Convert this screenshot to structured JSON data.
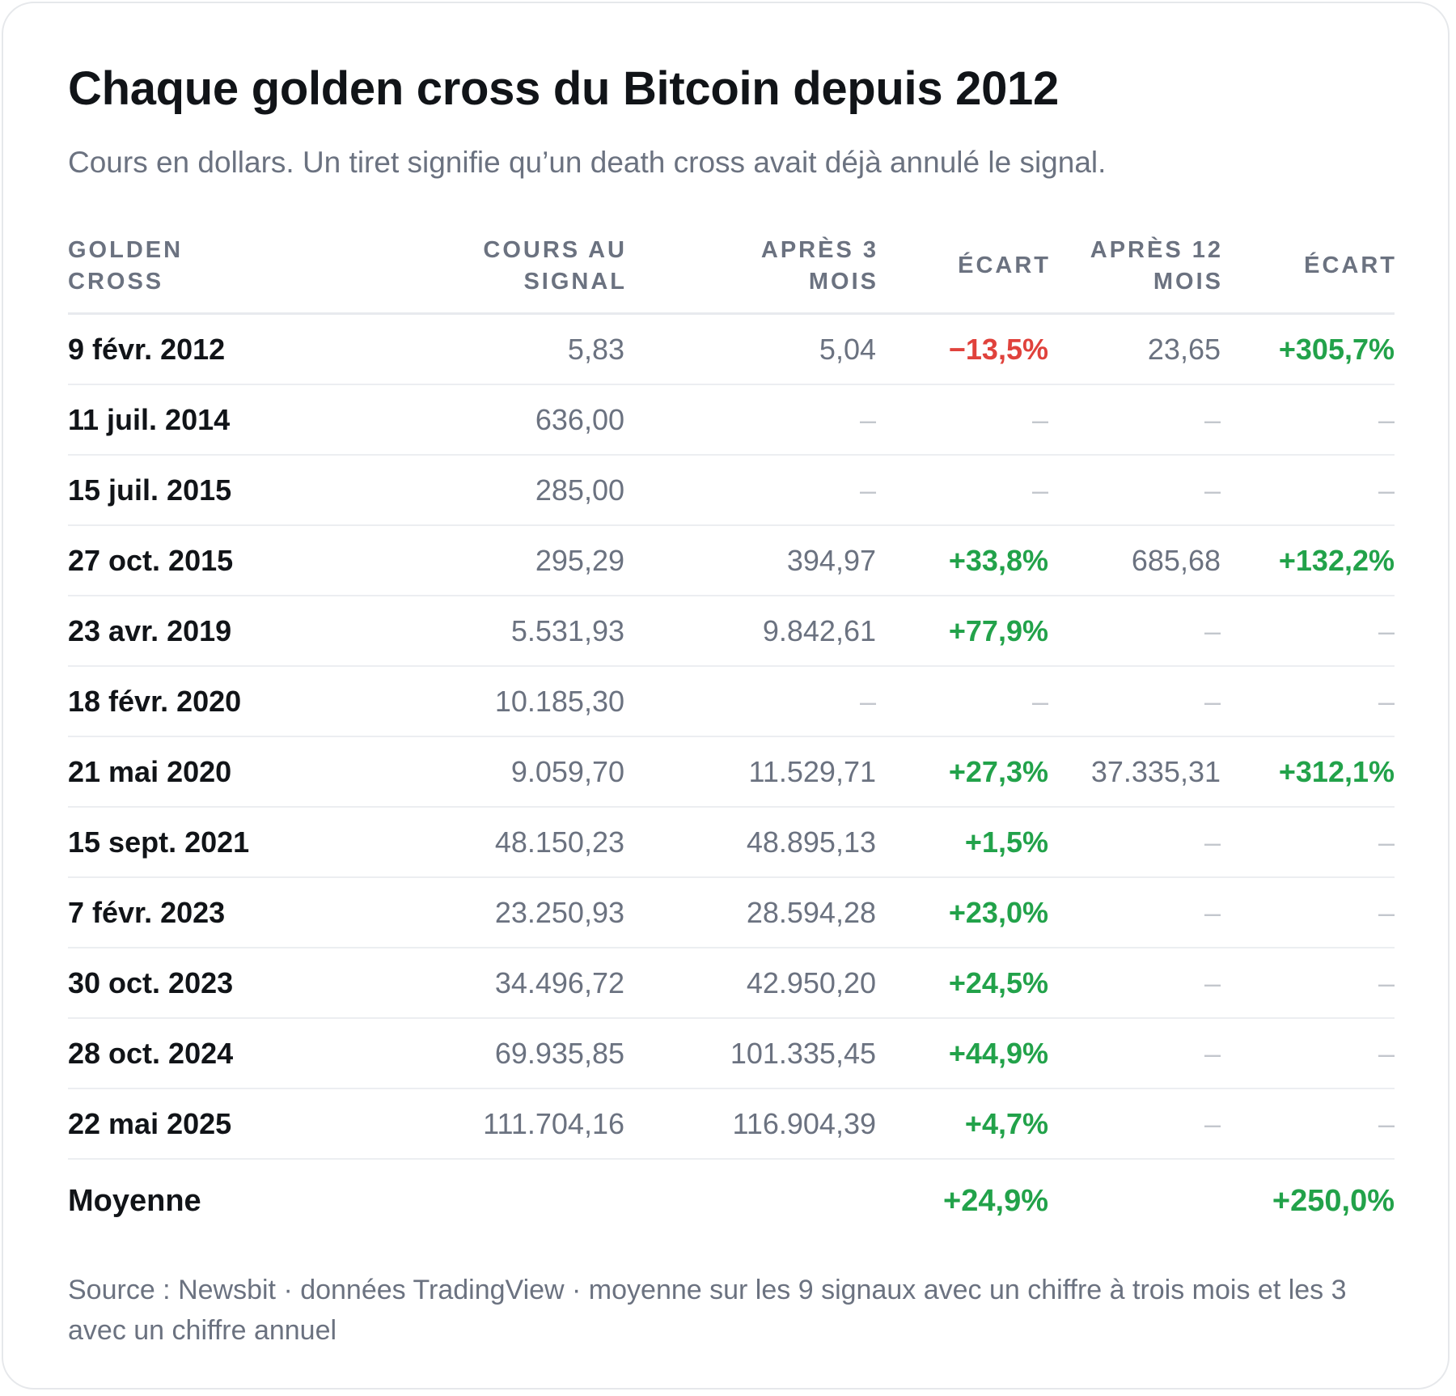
{
  "title": "Chaque golden cross du Bitcoin depuis 2012",
  "subtitle": "Cours en dollars. Un tiret signifie qu’un death cross avait déjà annulé le signal.",
  "columns": [
    {
      "line1": "GOLDEN",
      "line2": "CROSS"
    },
    {
      "line1": "COURS AU",
      "line2": "SIGNAL"
    },
    {
      "line1": "APRÈS 3",
      "line2": "MOIS"
    },
    {
      "line1": "ÉCART",
      "line2": ""
    },
    {
      "line1": "APRÈS 12",
      "line2": "MOIS"
    },
    {
      "line1": "ÉCART",
      "line2": ""
    }
  ],
  "colors": {
    "positive": "#22a24a",
    "negative": "#e0423c",
    "muted": "#6b7280",
    "dash": "#c3c7cd",
    "text": "#111418"
  },
  "chart_data": {
    "type": "table",
    "title": "Chaque golden cross du Bitcoin depuis 2012",
    "rows": [
      {
        "date": "9 févr. 2012",
        "signal": "5,83",
        "after3": "5,04",
        "change3": "−13,5%",
        "after12": "23,65",
        "change12": "+305,7%"
      },
      {
        "date": "11 juil. 2014",
        "signal": "636,00",
        "after3": "–",
        "change3": "–",
        "after12": "–",
        "change12": "–"
      },
      {
        "date": "15 juil. 2015",
        "signal": "285,00",
        "after3": "–",
        "change3": "–",
        "after12": "–",
        "change12": "–"
      },
      {
        "date": "27 oct. 2015",
        "signal": "295,29",
        "after3": "394,97",
        "change3": "+33,8%",
        "after12": "685,68",
        "change12": "+132,2%"
      },
      {
        "date": "23 avr. 2019",
        "signal": "5.531,93",
        "after3": "9.842,61",
        "change3": "+77,9%",
        "after12": "–",
        "change12": "–"
      },
      {
        "date": "18 févr. 2020",
        "signal": "10.185,30",
        "after3": "–",
        "change3": "–",
        "after12": "–",
        "change12": "–"
      },
      {
        "date": "21 mai 2020",
        "signal": "9.059,70",
        "after3": "11.529,71",
        "change3": "+27,3%",
        "after12": "37.335,31",
        "change12": "+312,1%"
      },
      {
        "date": "15 sept. 2021",
        "signal": "48.150,23",
        "after3": "48.895,13",
        "change3": "+1,5%",
        "after12": "–",
        "change12": "–"
      },
      {
        "date": "7 févr. 2023",
        "signal": "23.250,93",
        "after3": "28.594,28",
        "change3": "+23,0%",
        "after12": "–",
        "change12": "–"
      },
      {
        "date": "30 oct. 2023",
        "signal": "34.496,72",
        "after3": "42.950,20",
        "change3": "+24,5%",
        "after12": "–",
        "change12": "–"
      },
      {
        "date": "28 oct. 2024",
        "signal": "69.935,85",
        "after3": "101.335,45",
        "change3": "+44,9%",
        "after12": "–",
        "change12": "–"
      },
      {
        "date": "22 mai 2025",
        "signal": "111.704,16",
        "after3": "116.904,39",
        "change3": "+4,7%",
        "after12": "–",
        "change12": "–"
      }
    ],
    "average": {
      "label": "Moyenne",
      "change3": "+24,9%",
      "change12": "+250,0%"
    }
  },
  "footnote": "Source : Newsbit · données TradingView · moyenne sur les 9 signaux avec un chiffre à trois mois et les 3 avec un chiffre annuel"
}
